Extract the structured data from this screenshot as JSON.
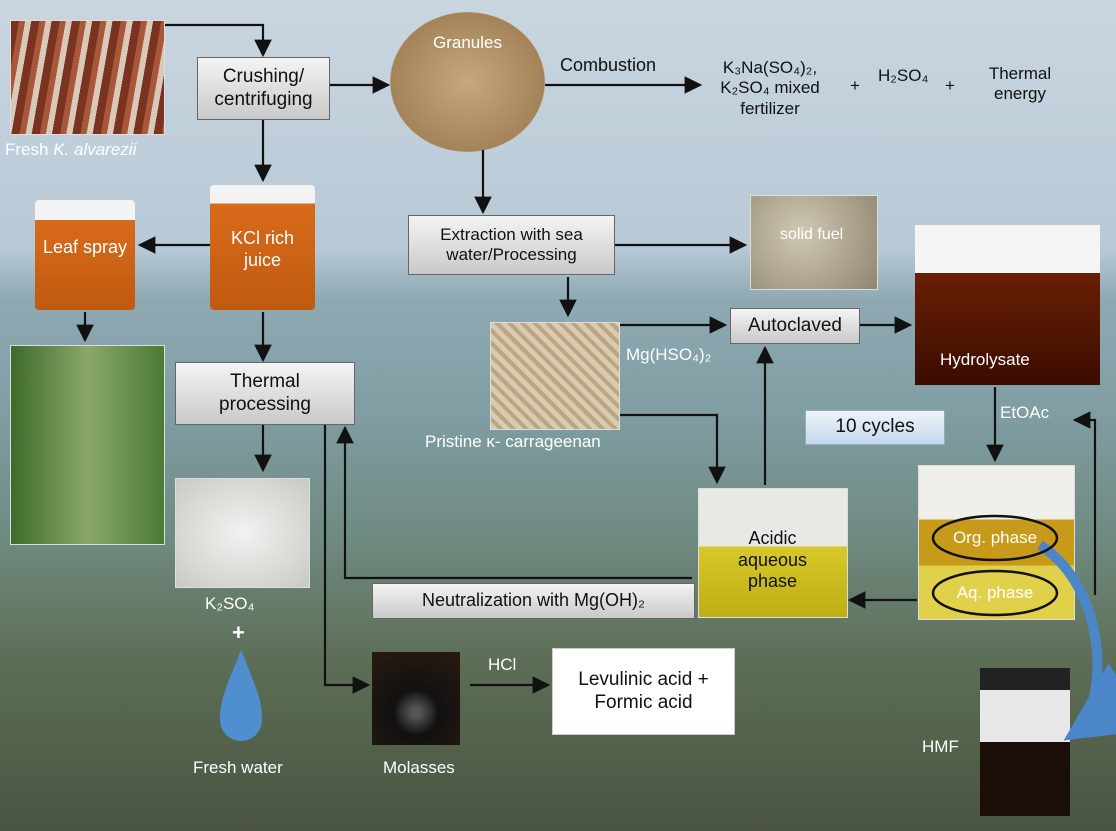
{
  "source": {
    "prefix": "Fresh",
    "species": "K. alvarezii"
  },
  "steps": {
    "crushing": "Crushing/ centrifuging",
    "granules": "Granules",
    "combustion": "Combustion",
    "fertilizer": "K₃Na(SO₄)₂, K₂SO₄ mixed fertilizer",
    "plus_1": "+",
    "sulfuric": "H₂SO₄",
    "plus_2": "+",
    "energy": "Thermal energy",
    "kcl": "KCl rich juice",
    "leaf": "Leaf spray",
    "extraction": "Extraction with sea water/Processing",
    "solid_fuel": "solid fuel",
    "hydrolysate": "Hydrolysate",
    "autoclaved": "Autoclaved",
    "catalyst": "Mg(HSO₄)₂",
    "thermal": "Thermal processing",
    "pristine": "Pristine κ- carrageenan",
    "cycles": "10 cycles",
    "etoac": "EtOAc",
    "acidic": "Acidic aqueous phase",
    "org": "Org. phase",
    "aq": "Aq. phase",
    "k2so4": "K₂SO₄",
    "plus_3": "+",
    "neutralization": "Neutralization with Mg(OH)₂",
    "hcl": "HCl",
    "levulinic": "Levulinic acid + Formic acid",
    "molasses": "Molasses",
    "fresh_water": "Fresh water",
    "hmf": "HMF"
  }
}
